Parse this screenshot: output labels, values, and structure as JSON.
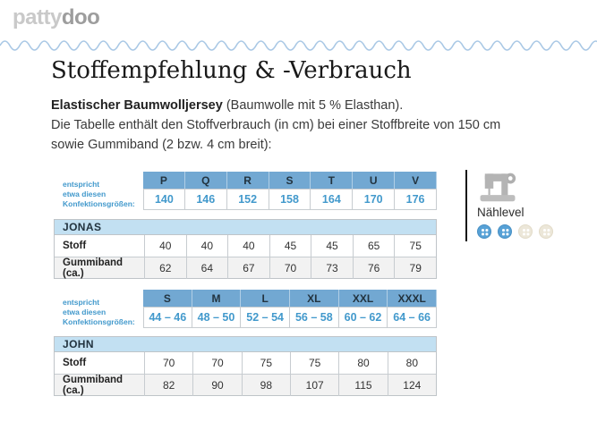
{
  "logo": {
    "text_light": "patty",
    "text_dark": "doo"
  },
  "page": {
    "title": "Stoffempfehlung & -Verbrauch"
  },
  "intro": {
    "line1_bold": "Elastischer Baumwolljersey",
    "line1_rest": " (Baumwolle mit 5 % Elasthan).",
    "line2": "Die Tabelle enthält den Stoffverbrauch (in cm) bei einer Stoffbreite von 150 cm",
    "line3": "sowie Gummiband (2 bzw. 4 cm breit):"
  },
  "size_note": "entspricht\netwa diesen\nKonfektionsgrößen:",
  "tables": [
    {
      "product": "JONAS",
      "sizes": [
        "P",
        "Q",
        "R",
        "S",
        "T",
        "U",
        "V"
      ],
      "konfektion": [
        "140",
        "146",
        "152",
        "158",
        "164",
        "170",
        "176"
      ],
      "rows": [
        {
          "label": "Stoff",
          "values": [
            "40",
            "40",
            "40",
            "45",
            "45",
            "65",
            "75"
          ]
        },
        {
          "label": "Gummiband (ca.)",
          "values": [
            "62",
            "64",
            "67",
            "70",
            "73",
            "76",
            "79"
          ]
        }
      ]
    },
    {
      "product": "JOHN",
      "sizes": [
        "S",
        "M",
        "L",
        "XL",
        "XXL",
        "XXXL"
      ],
      "konfektion": [
        "44 – 46",
        "48 – 50",
        "52 – 54",
        "56 – 58",
        "60 – 62",
        "64 – 66"
      ],
      "rows": [
        {
          "label": "Stoff",
          "values": [
            "70",
            "70",
            "75",
            "75",
            "80",
            "80"
          ]
        },
        {
          "label": "Gummiband (ca.)",
          "values": [
            "82",
            "90",
            "98",
            "107",
            "115",
            "124"
          ]
        }
      ]
    }
  ],
  "sidebar": {
    "level_label": "Nählevel",
    "machine_icon": "sewing-machine-icon",
    "level_buttons": [
      {
        "state": "filled"
      },
      {
        "state": "filled"
      },
      {
        "state": "empty"
      },
      {
        "state": "empty"
      }
    ]
  },
  "colors": {
    "accent_blue": "#72A8D2",
    "light_blue": "#C2E0F2",
    "text_blue": "#4299CC",
    "wave_blue": "#A9C8E5",
    "button_blue": "#57A1D6",
    "button_beige": "#ECE7D9"
  }
}
